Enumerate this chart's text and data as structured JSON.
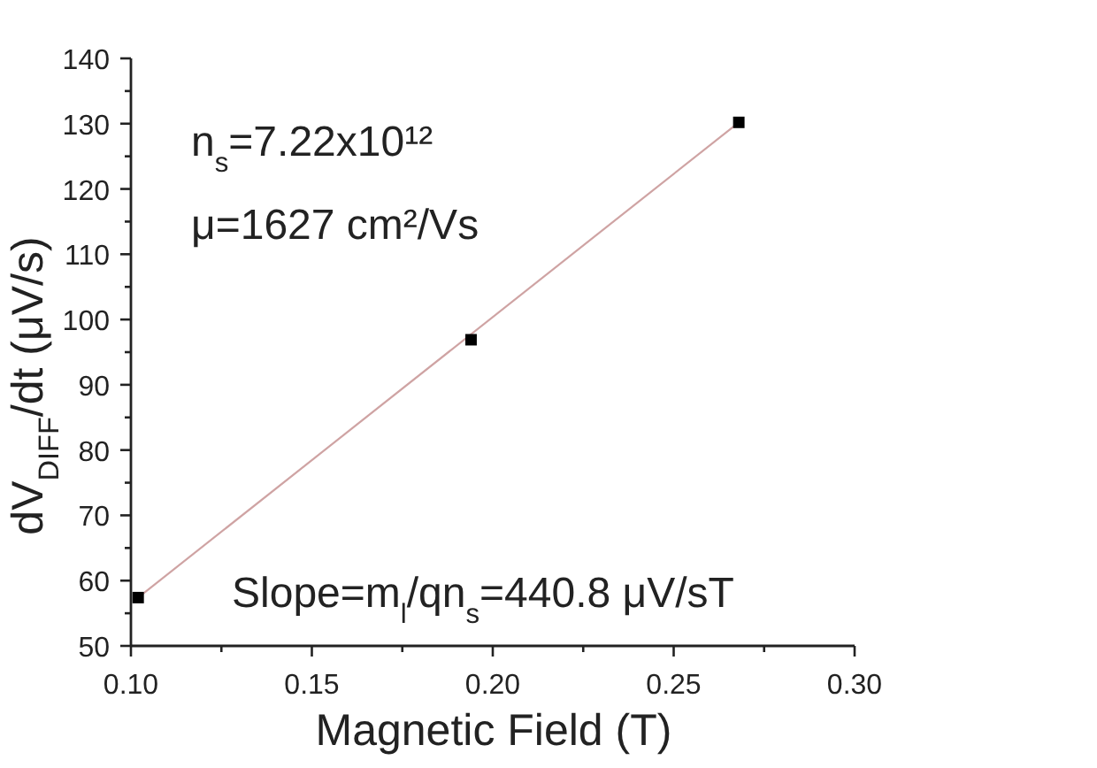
{
  "chart_data": {
    "type": "scatter",
    "xlabel": "Magnetic Field (T)",
    "ylabel": "dV$_{DIFF}$/dt (μV/s)",
    "x": [
      0.102,
      0.194,
      0.268
    ],
    "series": [
      {
        "type": "line",
        "marker": "none",
        "color": "#cfa3a3",
        "x": [
          0.102,
          0.268
        ],
        "values": [
          57.4,
          130.2
        ]
      },
      {
        "color": "#000000",
        "values": [
          57.4,
          96.9,
          130.2
        ]
      }
    ],
    "marker": "square",
    "xlim": [
      0.1,
      0.3
    ],
    "xticks": [
      {
        "value": 0.1,
        "label": "0.10"
      },
      {
        "value": 0.125,
        "label": null
      },
      {
        "value": 0.15,
        "label": "0.15"
      },
      {
        "value": 0.175,
        "label": null
      },
      {
        "value": 0.2,
        "label": "0.20"
      },
      {
        "value": 0.225,
        "label": null
      },
      {
        "value": 0.25,
        "label": "0.25"
      },
      {
        "value": 0.275,
        "label": null
      },
      {
        "value": 0.3,
        "label": "0.30"
      }
    ],
    "ylim": [
      50,
      140
    ],
    "yticks": [
      50,
      {
        "value": 55,
        "label": null
      },
      60,
      {
        "value": 65,
        "label": null
      },
      70,
      {
        "value": 75,
        "label": null
      },
      80,
      {
        "value": 85,
        "label": null
      },
      90,
      {
        "value": 95,
        "label": null
      },
      100,
      {
        "value": 105,
        "label": null
      },
      110,
      {
        "value": 115,
        "label": null
      },
      120,
      {
        "value": 125,
        "label": null
      },
      130,
      {
        "value": 135,
        "label": null
      },
      140
    ],
    "annotations": [
      "n$_{s}$=7.22x10¹²",
      "μ=1627 cm²/Vs",
      "Slope=m$_{l}$/qn$_{s}$=440.8 μV/sT"
    ]
  }
}
